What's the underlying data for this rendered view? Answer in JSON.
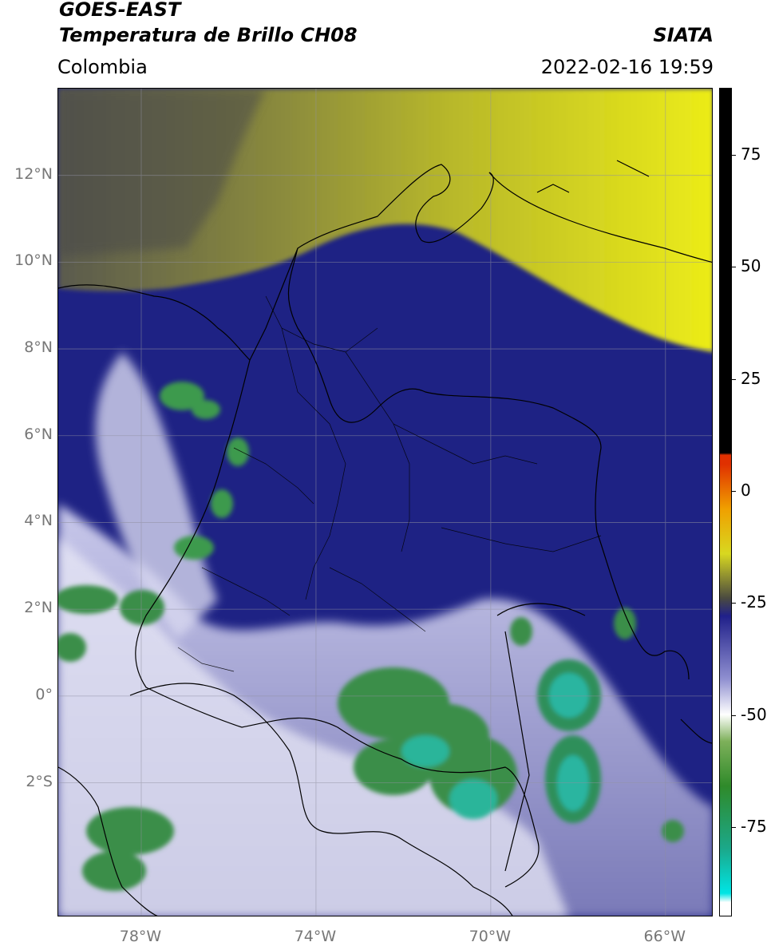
{
  "header": {
    "title_line1": "GOES-EAST",
    "title_line2": "Temperatura de Brillo CH08",
    "subtitle": "Colombia",
    "organization": "SIATA",
    "timestamp": "2022-02-16 19:59"
  },
  "map": {
    "lat_labels": [
      "12°N",
      "10°N",
      "8°N",
      "6°N",
      "4°N",
      "2°N",
      "0°",
      "2°S"
    ],
    "lat_values": [
      12,
      10,
      8,
      6,
      4,
      2,
      0,
      -2
    ],
    "lon_labels": [
      "78°W",
      "74°W",
      "70°W",
      "66°W"
    ],
    "lon_values": [
      -78,
      -74,
      -70,
      -66
    ],
    "extent": {
      "lon_min": -79.9,
      "lon_max": -64.9,
      "lat_min": -5.1,
      "lat_max": 14.0
    }
  },
  "colorbar": {
    "tick_labels": [
      "75",
      "50",
      "25",
      "0",
      "-25",
      "-50",
      "-75"
    ],
    "tick_values": [
      75,
      50,
      25,
      0,
      -25,
      -50,
      -75
    ],
    "range": [
      -95,
      90
    ],
    "palette": [
      "#ffffff",
      "#00e5e5",
      "#1ba88a",
      "#2f8a2a",
      "#7db05a",
      "#ffffff",
      "#8f8fd0",
      "#20208a",
      "#4a4a40",
      "#d8d820",
      "#f0a000",
      "#e03000",
      "#000000"
    ]
  },
  "colors": {
    "cold_cloud_green": "#3a9450",
    "deep_blue": "#1c1f82",
    "dry_yellow": "#d6d622",
    "dry_olive": "#8f8f3a",
    "border_black": "#000000"
  }
}
